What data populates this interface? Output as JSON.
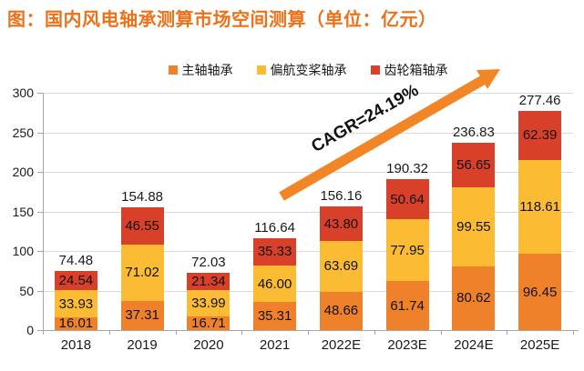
{
  "title": "图：国内风电轴承测算市场空间测算（单位：亿元）",
  "colors": {
    "title": "#ED7119",
    "arrow": "#F28627",
    "gridline": "#D9D9D9",
    "axis": "#A6A6A6",
    "text": "#1A1A1A"
  },
  "chart_data": {
    "type": "bar",
    "stacked": true,
    "title": "国内风电轴承测算市场空间测算",
    "unit": "亿元",
    "categories": [
      "2018",
      "2019",
      "2020",
      "2021",
      "2022E",
      "2023E",
      "2024E",
      "2025E"
    ],
    "series": [
      {
        "name": "主轴轴承",
        "color": "#F0812B",
        "values": [
          16.01,
          37.31,
          16.71,
          35.31,
          48.66,
          61.74,
          80.62,
          96.45
        ]
      },
      {
        "name": "偏航变桨轴承",
        "color": "#FBBC34",
        "values": [
          33.93,
          71.02,
          33.99,
          46.0,
          63.69,
          77.95,
          99.55,
          118.61
        ]
      },
      {
        "name": "齿轮箱轴承",
        "color": "#D8402A",
        "values": [
          24.54,
          46.55,
          21.34,
          35.33,
          43.8,
          50.64,
          56.65,
          62.39
        ]
      }
    ],
    "totals": [
      74.48,
      154.88,
      72.03,
      116.64,
      156.16,
      190.32,
      236.83,
      277.46
    ],
    "ylim": [
      0,
      300
    ],
    "yticks": [
      0,
      50,
      100,
      150,
      200,
      250,
      300
    ],
    "grid": true,
    "legend_position": "top",
    "annotation": {
      "text": "CAGR=24.19%"
    }
  }
}
